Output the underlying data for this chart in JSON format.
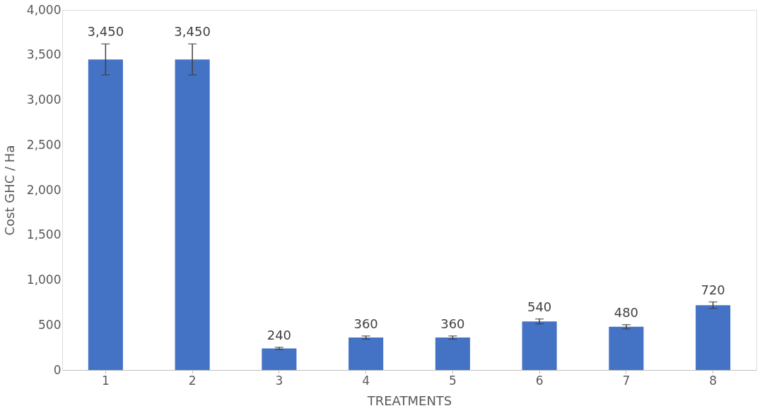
{
  "chart_data": {
    "type": "bar",
    "xlabel": "TREATMENTS",
    "ylabel": "Cost GHC / Ha",
    "categories": [
      "1",
      "2",
      "3",
      "4",
      "5",
      "6",
      "7",
      "8"
    ],
    "series": [
      {
        "color": "#4472c4",
        "values": [
          3450,
          3450,
          240,
          360,
          360,
          540,
          480,
          720
        ],
        "errors": [
          172,
          172,
          12,
          18,
          18,
          27,
          24,
          36
        ],
        "value_labels": [
          "3,450",
          "3,450",
          "240",
          "360",
          "360",
          "540",
          "480",
          "720"
        ]
      }
    ],
    "ylim": [
      0,
      4000
    ],
    "yticks": [
      0,
      {
        "value": 500,
        "label": "500"
      },
      {
        "value": 1000,
        "label": "1,000"
      },
      {
        "value": 1500,
        "label": "1,500"
      },
      {
        "value": 2000,
        "label": "2,000"
      },
      {
        "value": 2500,
        "label": "2,500"
      },
      {
        "value": 3000,
        "label": "3,000"
      },
      {
        "value": 3500,
        "label": "3,500"
      },
      {
        "value": 4000,
        "label": "4,000"
      }
    ],
    "grid": false,
    "legend": false
  }
}
